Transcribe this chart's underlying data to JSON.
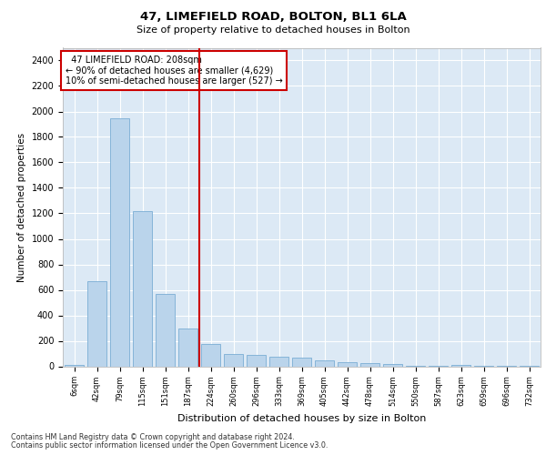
{
  "title1": "47, LIMEFIELD ROAD, BOLTON, BL1 6LA",
  "title2": "Size of property relative to detached houses in Bolton",
  "xlabel": "Distribution of detached houses by size in Bolton",
  "ylabel": "Number of detached properties",
  "bar_labels": [
    "6sqm",
    "42sqm",
    "79sqm",
    "115sqm",
    "151sqm",
    "187sqm",
    "224sqm",
    "260sqm",
    "296sqm",
    "333sqm",
    "369sqm",
    "405sqm",
    "442sqm",
    "478sqm",
    "514sqm",
    "550sqm",
    "587sqm",
    "623sqm",
    "659sqm",
    "696sqm",
    "732sqm"
  ],
  "bar_values": [
    12,
    670,
    1950,
    1220,
    565,
    295,
    175,
    100,
    90,
    75,
    70,
    50,
    30,
    25,
    18,
    5,
    5,
    8,
    3,
    2,
    2
  ],
  "bar_color": "#bad4eb",
  "bar_edge_color": "#7aadd4",
  "vline_x": 5.5,
  "vline_color": "#cc0000",
  "annotation_text": "  47 LIMEFIELD ROAD: 208sqm  \n← 90% of detached houses are smaller (4,629)\n10% of semi-detached houses are larger (527) →",
  "annotation_box_color": "#cc0000",
  "ylim": [
    0,
    2500
  ],
  "yticks": [
    0,
    200,
    400,
    600,
    800,
    1000,
    1200,
    1400,
    1600,
    1800,
    2000,
    2200,
    2400
  ],
  "footer1": "Contains HM Land Registry data © Crown copyright and database right 2024.",
  "footer2": "Contains public sector information licensed under the Open Government Licence v3.0.",
  "plot_bg_color": "#dce9f5"
}
